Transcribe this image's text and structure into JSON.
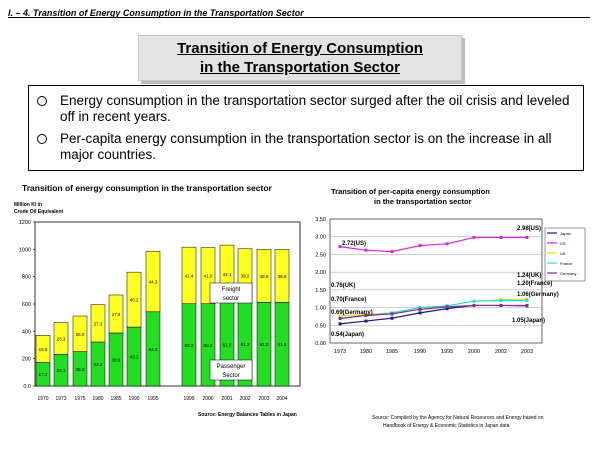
{
  "header": {
    "title": "I. – 4. Transition of Energy Consumption in the Transportation Sector"
  },
  "slide": {
    "title_line1": "Transition of Energy Consumption",
    "title_line2": "in the Transportation Sector",
    "bullets": [
      "Energy consumption in the transportation sector surged after the oil crisis and leveled off in recent years.",
      "Per-capita energy consumption in the transportation sector is on the increase in all major countries."
    ]
  },
  "chart_data": [
    {
      "type": "bar",
      "title": "Transition of energy consumption in the transportation sector",
      "ylabel": "Million Kl in Crude Oil Equivalent",
      "ylim": [
        0,
        1200
      ],
      "yticks": [
        "0.0",
        "200",
        "400",
        "600",
        "800",
        "1000",
        "1200"
      ],
      "categories": [
        "1970",
        "1973",
        "1975",
        "1980",
        "1985",
        "1990",
        "1995",
        "1999",
        "2000",
        "2001",
        "2002",
        "2003",
        "2004"
      ],
      "series": [
        {
          "name": "Passenger Sector",
          "values": [
            172,
            231,
            252,
            322,
            388,
            431,
            543,
            602,
            602,
            610,
            612,
            612,
            612
          ],
          "labels": [
            "17.2",
            "23.1",
            "25.2",
            "32.2",
            "38.8",
            "43.1",
            "54.3",
            "60.2",
            "60.2",
            "61.0",
            "61.2",
            "61.2",
            "61.2"
          ],
          "color": "#22dd22"
        },
        {
          "name": "Freight sector",
          "values": [
            199,
            233,
            260,
            273,
            278,
            402,
            443,
            414,
            410,
            421,
            392,
            388,
            388
          ],
          "labels": [
            "19.9",
            "23.3",
            "26.0",
            "27.3",
            "27.8",
            "40.2",
            "44.3",
            "41.4",
            "41.0",
            "42.1",
            "39.2",
            "38.8",
            "38.8"
          ],
          "color": "#ffff22"
        }
      ],
      "annotations": [
        "Freight sector",
        "Passenger Sector"
      ],
      "source": "Source: Energy Balances Tables in Japan"
    },
    {
      "type": "line",
      "title": "Transition of per-capita energy consumption in the transportation sector",
      "ylim": [
        0,
        3.5
      ],
      "yticks": [
        "0.00",
        "0.50",
        "1.00",
        "1.50",
        "2.00",
        "2.50",
        "3.00",
        "3.50"
      ],
      "x": [
        "1973",
        "1980",
        "1985",
        "1990",
        "1995",
        "2000",
        "2002",
        "2003"
      ],
      "series": [
        {
          "name": "Japan",
          "color": "#1a1a80",
          "values": [
            0.54,
            0.62,
            0.7,
            0.85,
            0.97,
            1.06,
            1.06,
            1.05
          ]
        },
        {
          "name": "US",
          "color": "#e020e0",
          "values": [
            2.72,
            2.62,
            2.58,
            2.75,
            2.8,
            2.98,
            2.98,
            2.98
          ]
        },
        {
          "name": "UK",
          "color": "#e0e000",
          "values": [
            0.76,
            0.8,
            0.85,
            1.0,
            1.05,
            1.18,
            1.22,
            1.24
          ]
        },
        {
          "name": "France",
          "color": "#20e0e0",
          "values": [
            0.7,
            0.78,
            0.85,
            1.0,
            1.05,
            1.18,
            1.2,
            1.2
          ]
        },
        {
          "name": "Germany",
          "color": "#8a2a8a",
          "values": [
            0.69,
            0.78,
            0.82,
            0.95,
            1.02,
            1.06,
            1.06,
            1.06
          ]
        }
      ],
      "annotations": {
        "us_start": "2.72(US)",
        "us_end": "2.98(US)",
        "uk_start": "0.76(UK)",
        "uk_end": "1.24(UK)",
        "france_start": "0.70(France)",
        "france_end": "1.20(France)",
        "germany_start": "0.69(Germany)",
        "germany_end": "1.06(Germany)",
        "japan_start": "0.54(Japan)",
        "japan_end": "1.05(Japan)"
      },
      "source": "Source: Compiled by the Agency for Natural Resources and Energy based on Handbook of Energy & Economic Statistics in Japan data"
    }
  ]
}
